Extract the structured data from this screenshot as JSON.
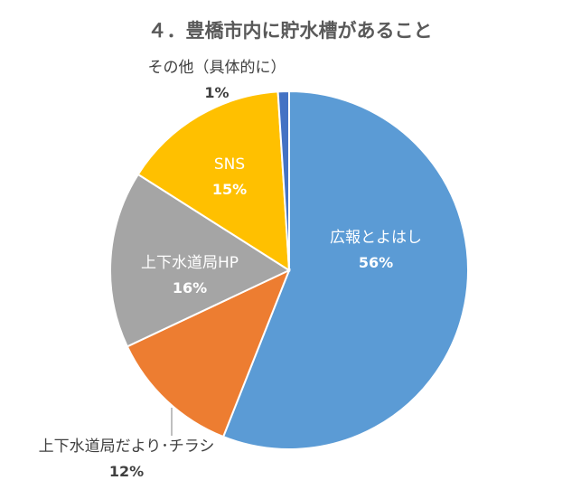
{
  "chart_data": {
    "type": "pie",
    "title": "４．豊橋市内に貯水槽があること",
    "slices": [
      {
        "label": "広報とよはし",
        "value": 56,
        "value_label": "56%",
        "color": "#5B9BD5"
      },
      {
        "label": "上下水道局だより･チラシ",
        "value": 12,
        "value_label": "12%",
        "color": "#ED7D31"
      },
      {
        "label": "上下水道局HP",
        "value": 16,
        "value_label": "16%",
        "color": "#A5A5A5"
      },
      {
        "label": "SNS",
        "value": 15,
        "value_label": "15%",
        "color": "#FFC000"
      },
      {
        "label": "その他（具体的に）",
        "value": 1,
        "value_label": "1%",
        "color": "#4472C4"
      }
    ],
    "start_angle_deg": 0,
    "direction": "clockwise",
    "legend": "none"
  }
}
